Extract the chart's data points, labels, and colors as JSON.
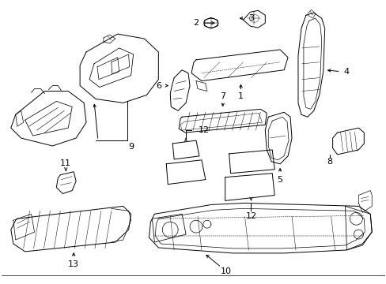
{
  "background_color": "#ffffff",
  "line_color": "#000000",
  "lw": 0.7,
  "fig_width": 4.89,
  "fig_height": 3.6,
  "dpi": 100
}
